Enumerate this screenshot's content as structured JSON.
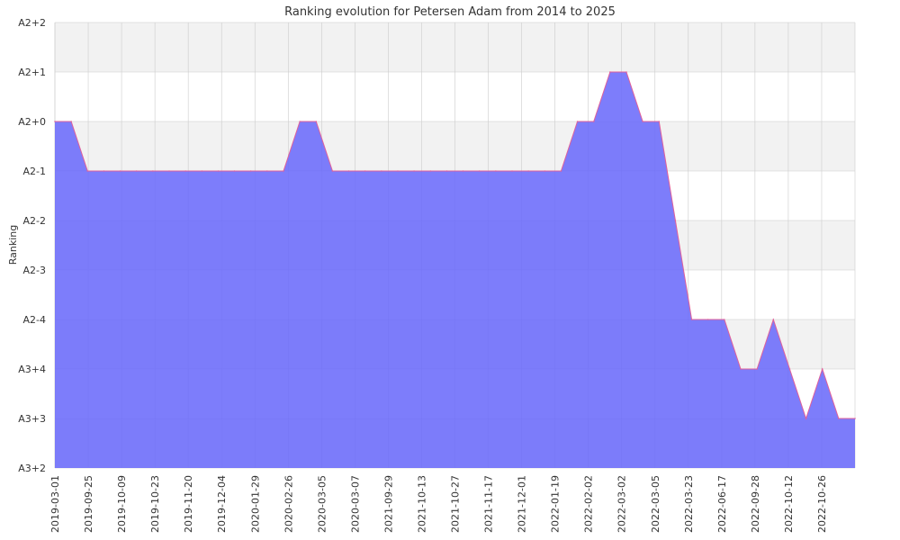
{
  "chart_data": {
    "type": "area",
    "title": "Ranking evolution for Petersen Adam from 2014 to 2025",
    "xlabel": "",
    "ylabel": "Ranking",
    "y_levels": [
      "A3+2",
      "A3+3",
      "A3+4",
      "A2-4",
      "A2-3",
      "A2-2",
      "A2-1",
      "A2+0",
      "A2+1",
      "A2+2"
    ],
    "x_tick_labels": [
      "2019-03-01",
      "2019-09-25",
      "2019-10-09",
      "2019-10-23",
      "2019-11-20",
      "2019-12-04",
      "2020-01-29",
      "2020-02-26",
      "2020-03-05",
      "2020-03-07",
      "2021-09-29",
      "2021-10-13",
      "2021-10-27",
      "2021-11-17",
      "2021-12-01",
      "2022-01-19",
      "2022-02-02",
      "2022-03-02",
      "2022-03-05",
      "2022-03-23",
      "2022-06-17",
      "2022-09-28",
      "2022-10-12",
      "2022-10-26"
    ],
    "series": [
      {
        "values": [
          "A2+0",
          "A2+0",
          "A2-1",
          "A2-1",
          "A2-1",
          "A2-1",
          "A2-1",
          "A2-1",
          "A2-1",
          "A2-1",
          "A2-1",
          "A2-1",
          "A2-1",
          "A2-1",
          "A2-1",
          "A2+0",
          "A2+0",
          "A2-1",
          "A2-1",
          "A2-1",
          "A2-1",
          "A2-1",
          "A2-1",
          "A2-1",
          "A2-1",
          "A2-1",
          "A2-1",
          "A2-1",
          "A2-1",
          "A2-1",
          "A2-1",
          "A2-1",
          "A2+0",
          "A2+0",
          "A2+1",
          "A2+1",
          "A2+0",
          "A2+0",
          "A2-2",
          "A2-4",
          "A2-4",
          "A2-4",
          "A3+4",
          "A3+4",
          "A2-4",
          "A3+4",
          "A3+3",
          "A3+4",
          "A3+3",
          "A3+3"
        ]
      }
    ],
    "ylim": [
      "A3+2",
      "A2+2"
    ],
    "grid": true,
    "colors": {
      "fill": "#6b6bfb",
      "line": "#e0609a",
      "band": "#f2f2f2",
      "grid": "#cccccc"
    }
  }
}
